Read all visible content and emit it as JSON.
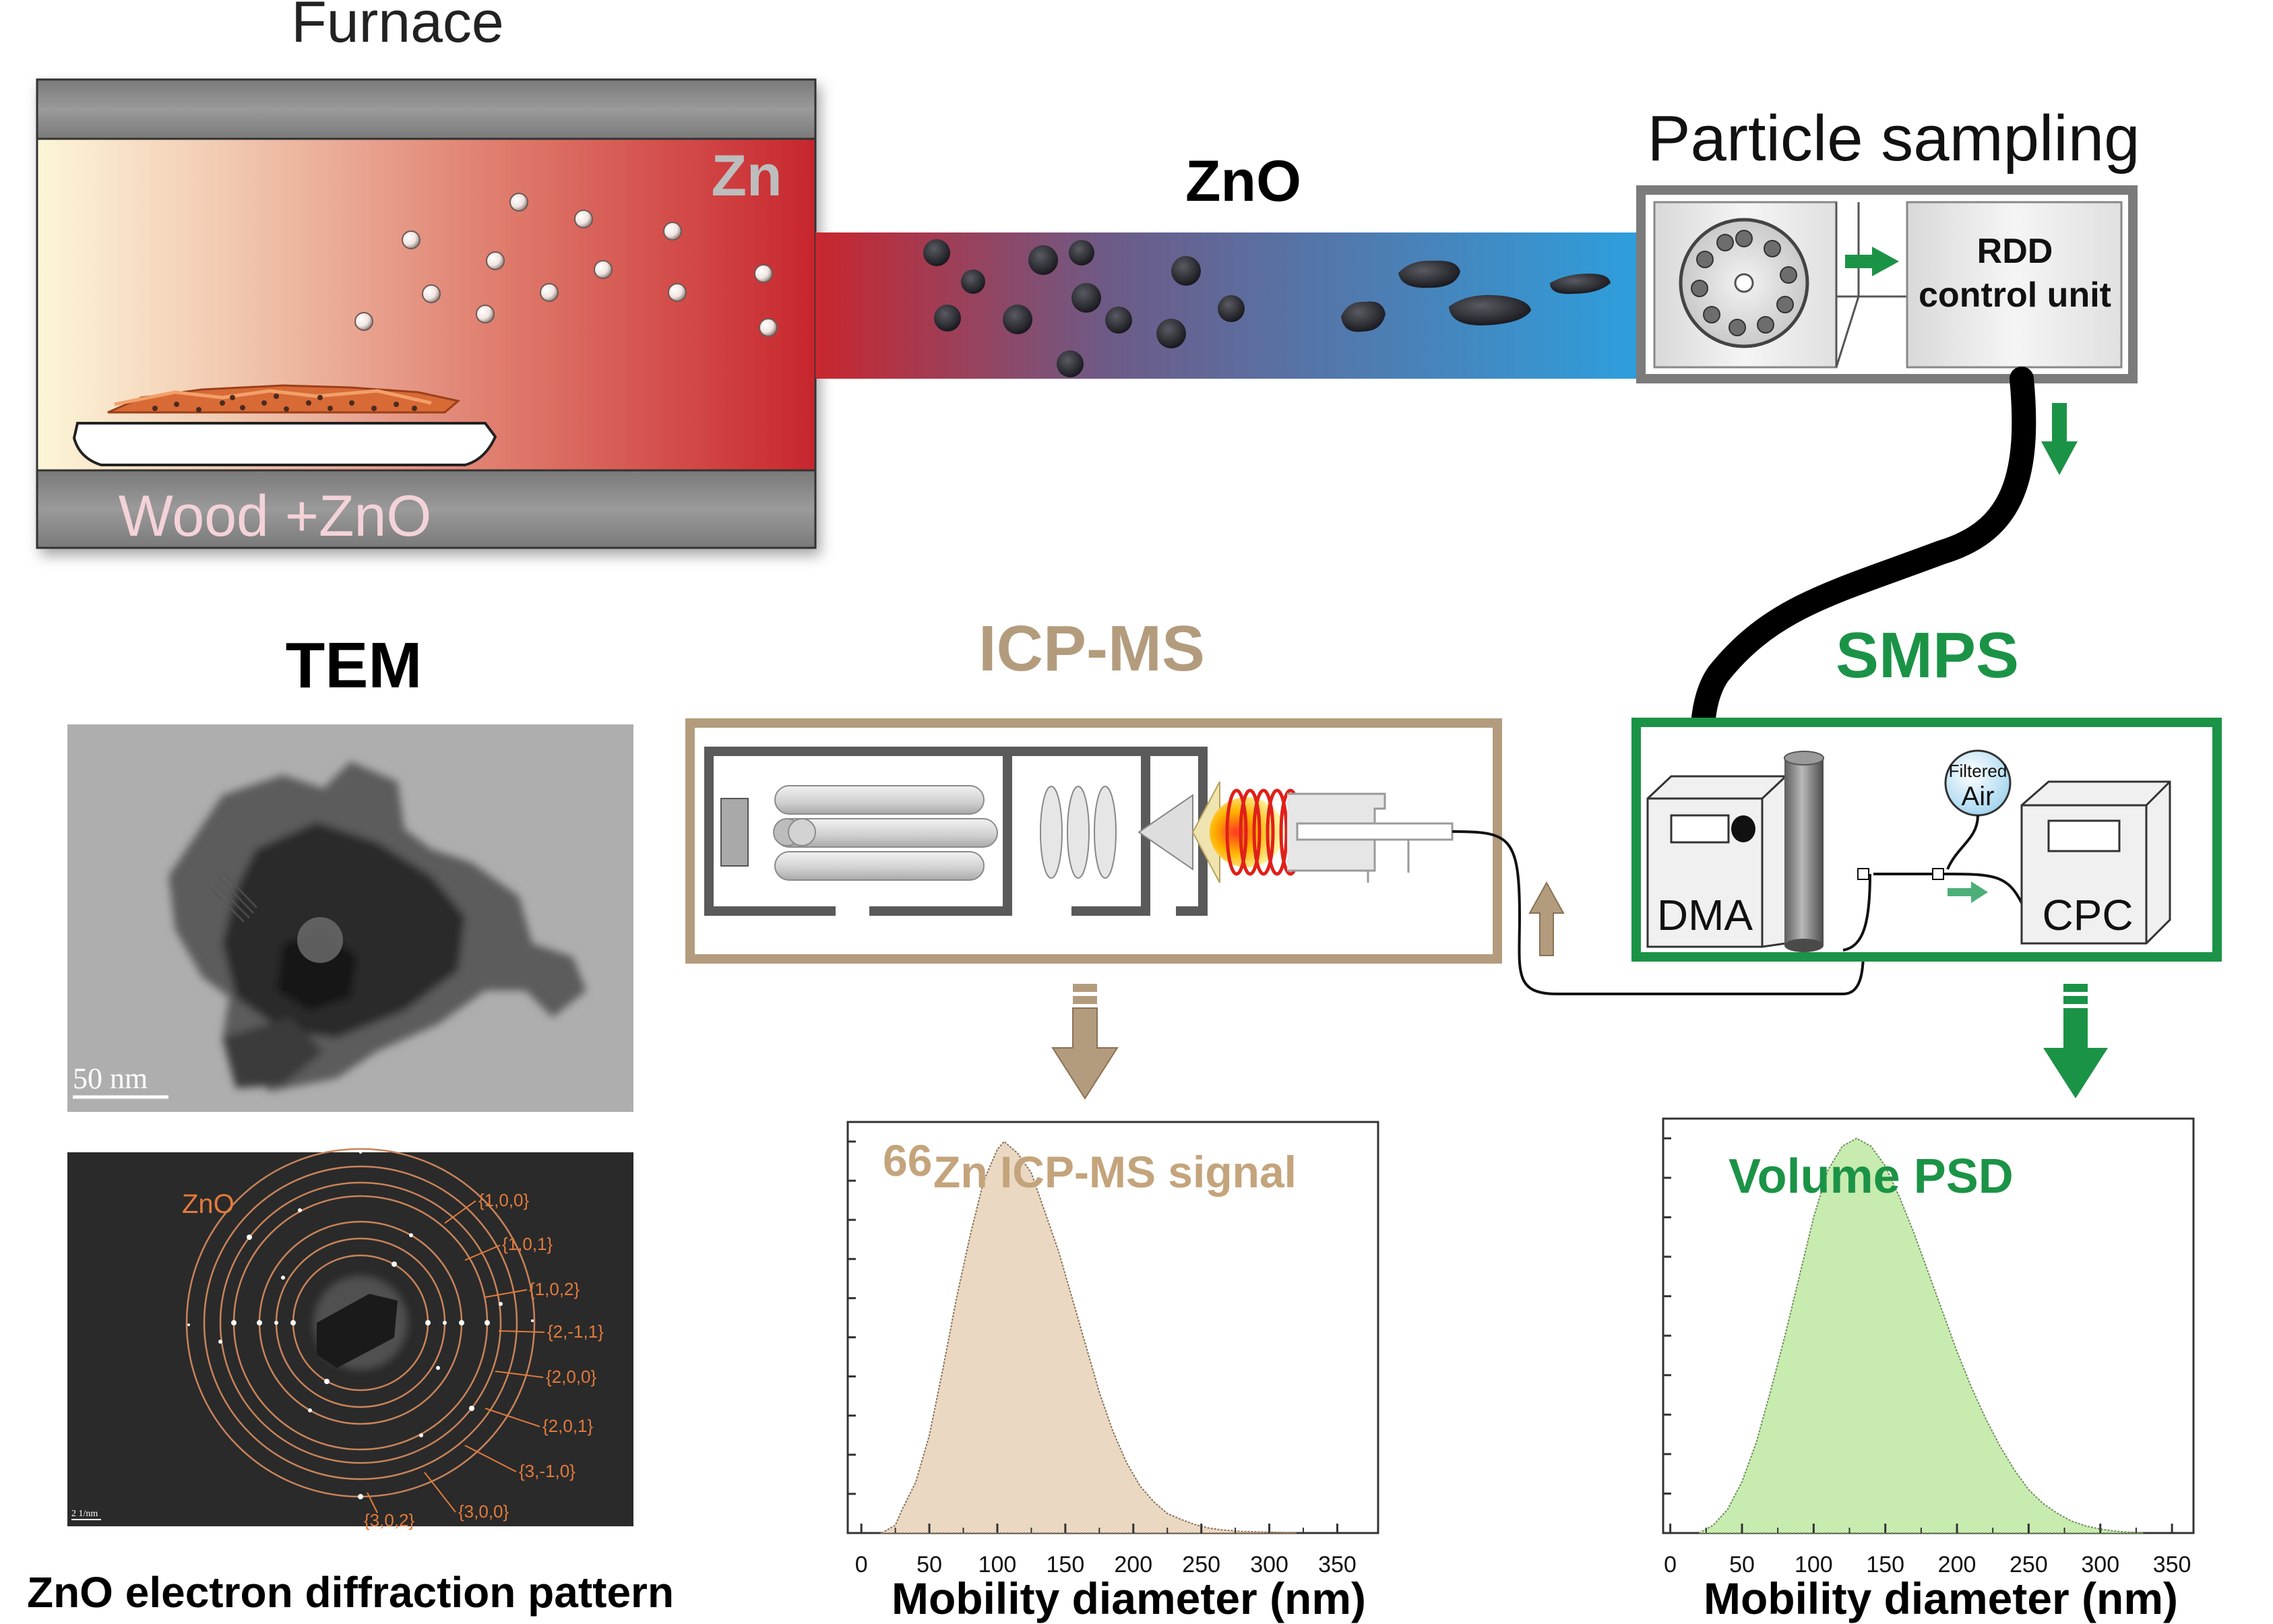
{
  "furnace": {
    "title": "Furnace",
    "zn_label": "Zn",
    "sample_label": "Wood +ZnO",
    "colors": {
      "hot": "#c8262e",
      "cool": "#fdf6d8",
      "wall": "#8c8c8c"
    }
  },
  "transfer_tube": {
    "label": "ZnO",
    "colors": {
      "start": "#c8262e",
      "end": "#2d9fdd"
    }
  },
  "sampler": {
    "title": "Particle sampling",
    "unit_label_1": "RDD",
    "unit_label_2": "control unit"
  },
  "tem": {
    "title": "TEM",
    "scale_label": "50 nm"
  },
  "diffraction": {
    "caption": "ZnO electron diffraction pattern",
    "phase_label": "ZnO",
    "scale_label": "2 1/nm",
    "rings": [
      "{1,0,0}",
      "{1,0,1}",
      "{1,0,2}",
      "{2,-1,1}",
      "{2,0,0}",
      "{2,0,1}",
      "{3,-1,0}",
      "{3,0,0}",
      "{3,0,2}"
    ]
  },
  "icpms": {
    "title": "ICP-MS",
    "color": "#b39c7d"
  },
  "smps": {
    "title": "SMPS",
    "dma_label": "DMA",
    "cpc_label": "CPC",
    "air_label_1": "Filtered",
    "air_label_2": "Air",
    "color": "#1b9346"
  },
  "chart_data": [
    {
      "type": "area",
      "title_superscript": "66",
      "title": "Zn ICP-MS signal",
      "xlabel": "Mobility diameter (nm)",
      "ylabel": "",
      "xlim": [
        -10,
        380
      ],
      "ylim": [
        0,
        1.05
      ],
      "xticks": [
        0,
        50,
        100,
        150,
        200,
        250,
        300,
        350
      ],
      "fill": "#ead8c2",
      "stroke": "#8a7156",
      "title_color": "#c4a47c",
      "series": [
        {
          "x": [
            15,
            25,
            30,
            40,
            50,
            60,
            70,
            80,
            90,
            100,
            105,
            115,
            125,
            135,
            145,
            155,
            165,
            175,
            185,
            195,
            205,
            215,
            225,
            235,
            245,
            255,
            265,
            280,
            300,
            320
          ],
          "values": [
            0,
            0.02,
            0.06,
            0.13,
            0.25,
            0.42,
            0.6,
            0.76,
            0.9,
            0.98,
            1.0,
            0.97,
            0.92,
            0.82,
            0.72,
            0.6,
            0.48,
            0.36,
            0.26,
            0.18,
            0.12,
            0.08,
            0.05,
            0.035,
            0.022,
            0.013,
            0.008,
            0.004,
            0.002,
            0
          ]
        }
      ]
    },
    {
      "type": "area",
      "title": "Volume PSD",
      "xlabel": "Mobility diameter (nm)",
      "ylabel": "",
      "xlim": [
        -5,
        365
      ],
      "ylim": [
        0,
        1.05
      ],
      "xticks": [
        0,
        50,
        100,
        150,
        200,
        250,
        300,
        350
      ],
      "fill": "#c8ebb0",
      "stroke": "#6c8f5a",
      "title_color": "#1b9346",
      "series": [
        {
          "x": [
            20,
            30,
            40,
            50,
            60,
            70,
            80,
            90,
            100,
            110,
            120,
            130,
            140,
            150,
            160,
            170,
            180,
            190,
            200,
            210,
            220,
            230,
            240,
            250,
            260,
            270,
            280,
            290,
            300,
            310,
            320,
            330
          ],
          "values": [
            0,
            0.02,
            0.06,
            0.13,
            0.23,
            0.36,
            0.5,
            0.65,
            0.8,
            0.92,
            0.98,
            1.0,
            0.98,
            0.93,
            0.85,
            0.76,
            0.66,
            0.56,
            0.46,
            0.37,
            0.29,
            0.22,
            0.16,
            0.11,
            0.075,
            0.05,
            0.03,
            0.018,
            0.01,
            0.005,
            0.002,
            0
          ]
        }
      ]
    }
  ]
}
